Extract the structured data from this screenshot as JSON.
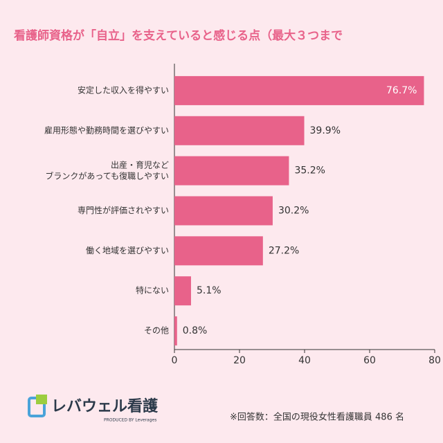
{
  "chart_data": {
    "type": "bar",
    "orientation": "horizontal",
    "title": "看護師資格が「自立」を支えていると感じる点（最大３つまで",
    "categories": [
      "安定した収入を得やすい",
      "雇用形態や勤務時間を選びやすい",
      "出産・育児など\nブランクがあっても復職しやすい",
      "専門性が評価されやすい",
      "働く地域を選びやすい",
      "特にない",
      "その他"
    ],
    "values": [
      76.7,
      39.9,
      35.2,
      30.2,
      27.2,
      5.1,
      0.8
    ],
    "value_labels": [
      "76.7%",
      "39.9%",
      "35.2%",
      "30.2%",
      "27.2%",
      "5.1%",
      "0.8%"
    ],
    "color": "#e8628a",
    "xlim": [
      0,
      80
    ],
    "xticks": [
      0,
      20,
      40,
      60,
      80
    ]
  },
  "footer": {
    "logo": "レバウェル看護",
    "logo_sub": "PRODUCED BY Leverages",
    "note": "※回答数：全国の現役女性看護職員 486 名"
  }
}
